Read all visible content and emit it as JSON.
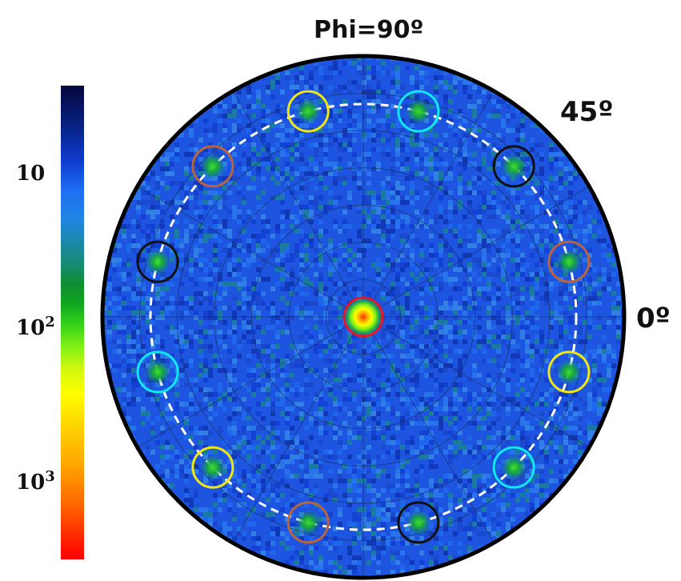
{
  "chart_data": {
    "type": "heatmap",
    "subtype": "polar pole figure",
    "title": "Phi=90º",
    "angle_labels": [
      "45º",
      "0º"
    ],
    "colorbar": {
      "scale": "log",
      "tick_labels": [
        {
          "base": "10",
          "exp": ""
        },
        {
          "base": "10",
          "exp": "2"
        },
        {
          "base": "10",
          "exp": "3"
        }
      ],
      "colormap": "jet (reversed: dark blue low, red high)"
    },
    "background_color": "#1d55e0",
    "grid": "on",
    "dashed_ring_color": "#ffffff",
    "center_spot": {
      "r": 0,
      "theta_deg": 0,
      "marker_color": "#e8142a"
    },
    "spots": [
      {
        "theta_deg": 105,
        "marker_color": "#f0e614"
      },
      {
        "theta_deg": 75,
        "marker_color": "#10e8f0"
      },
      {
        "theta_deg": 45,
        "marker_color": "#111111"
      },
      {
        "theta_deg": 15,
        "marker_color": "#b8643c"
      },
      {
        "theta_deg": -15,
        "marker_color": "#f0e614"
      },
      {
        "theta_deg": -45,
        "marker_color": "#10e8f0"
      },
      {
        "theta_deg": -75,
        "marker_color": "#111111"
      },
      {
        "theta_deg": -105,
        "marker_color": "#b8643c"
      },
      {
        "theta_deg": -135,
        "marker_color": "#f0e614"
      },
      {
        "theta_deg": -165,
        "marker_color": "#10e8f0"
      },
      {
        "theta_deg": 165,
        "marker_color": "#111111"
      },
      {
        "theta_deg": 135,
        "marker_color": "#b8643c"
      }
    ]
  }
}
